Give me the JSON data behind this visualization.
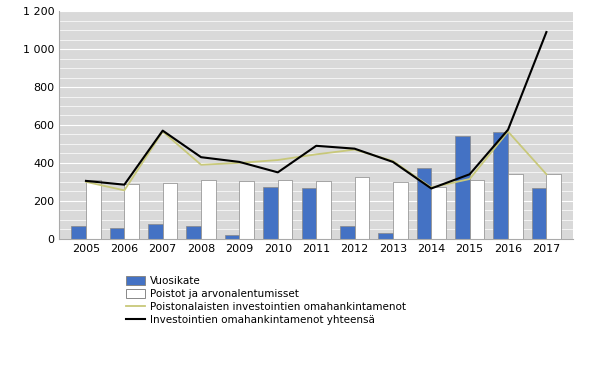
{
  "years": [
    2005,
    2006,
    2007,
    2008,
    2009,
    2010,
    2011,
    2012,
    2013,
    2014,
    2015,
    2016,
    2017
  ],
  "vuosikate": [
    65,
    55,
    80,
    65,
    20,
    275,
    265,
    65,
    30,
    375,
    540,
    565,
    270
  ],
  "poistot": [
    310,
    290,
    295,
    310,
    305,
    310,
    305,
    325,
    300,
    275,
    310,
    340,
    340
  ],
  "poistonalaisten": [
    300,
    255,
    565,
    390,
    400,
    415,
    445,
    470,
    410,
    270,
    315,
    565,
    340
  ],
  "investointien": [
    305,
    285,
    570,
    430,
    405,
    350,
    490,
    475,
    405,
    265,
    340,
    575,
    1090
  ],
  "bar_color_vuosikate": "#4472c4",
  "bar_color_poistot": "#ffffff",
  "bar_edge_color": "#888888",
  "line_color_poistonalaisten": "#c8c87a",
  "line_color_investointien": "#000000",
  "ylim": [
    0,
    1200
  ],
  "yticks": [
    0,
    200,
    400,
    600,
    800,
    1000,
    1200
  ],
  "ytick_labels": [
    "0",
    "200",
    "400",
    "600",
    "800",
    "1 000",
    "1 200"
  ],
  "legend_labels": [
    "Vuosikate",
    "Poistot ja arvonalentumisset",
    "Poistonalaisten investointien omahankintamenot",
    "Investointien omahankintamenot yhteensä"
  ],
  "plot_bg_color": "#d9d9d9",
  "figure_bg_color": "#ffffff",
  "grid_color": "#ffffff"
}
